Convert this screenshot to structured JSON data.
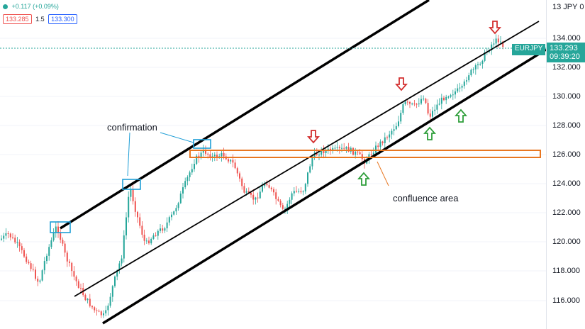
{
  "header": {
    "change": "+0.117 (+0.09%)",
    "bid": "133.285",
    "spread": "1.5",
    "ask": "133.300"
  },
  "price_axis": {
    "top_label": "13 JPY 0",
    "ticks": [
      "134.000",
      "132.000",
      "130.000",
      "128.000",
      "126.000",
      "124.000",
      "122.000",
      "120.000",
      "118.000",
      "116.000"
    ]
  },
  "current_price": {
    "symbol": "EURJPY",
    "price": "133.293",
    "time": "09:39:20"
  },
  "annotations": {
    "confirmation": "confirmation",
    "confluence": "confluence area"
  },
  "colors": {
    "up_candle": "#26a69a",
    "down_candle": "#ef5350",
    "channel_line": "#000000",
    "confirmation_box": "#1e9ed6",
    "confluence_box": "#e87722",
    "arrow_down": "#d32f2f",
    "arrow_up": "#2e9e3a"
  },
  "icons": {
    "arrow_down": "arrow-down-icon",
    "arrow_up": "arrow-up-icon"
  }
}
